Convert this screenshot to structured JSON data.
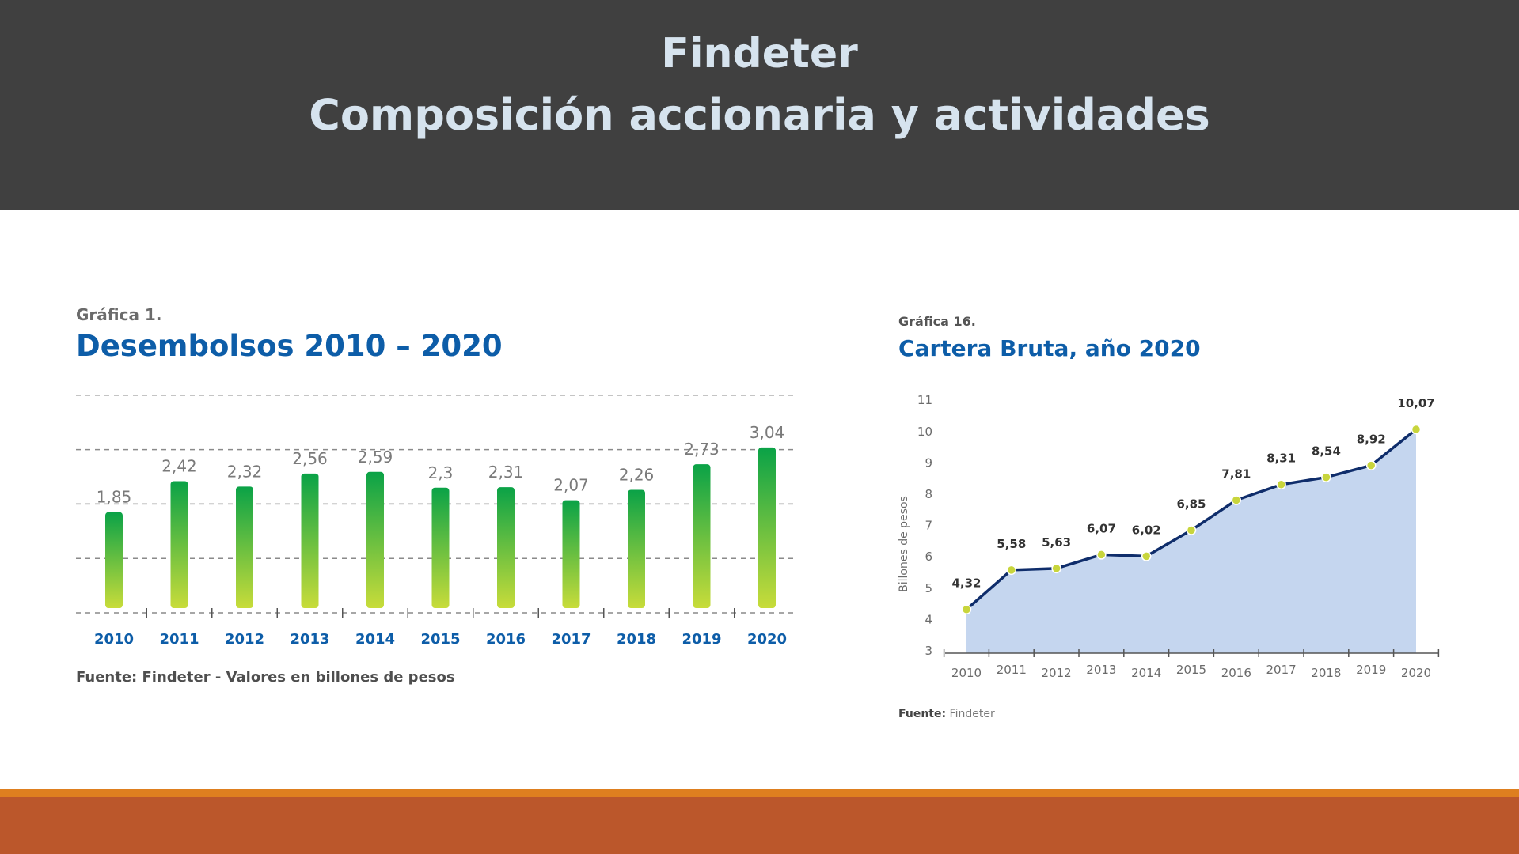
{
  "header": {
    "line1": "Findeter",
    "line2": "Composición accionaria y actividades"
  },
  "chart1": {
    "kicker": "Gráfica 1.",
    "title": "Desembolsos 2010 – 2020",
    "source": "Fuente: Findeter - Valores en billones de pesos"
  },
  "chart2": {
    "kicker": "Gráfica 16.",
    "title": "Cartera Bruta, año 2020",
    "source_bold": "Fuente:",
    "source_rest": " Findeter"
  },
  "colors": {
    "header_bg": "#404040",
    "header_text": "#d6e3ee",
    "title_blue": "#0d5da8",
    "bar_top": "#0aa247",
    "bar_bottom": "#c8dc3a",
    "line_navy": "#0f2d6b",
    "area_fill": "#c5d6ef",
    "marker": "#c8d53c",
    "footer_orange": "#de7f1f",
    "footer_brown": "#bb572b"
  },
  "chart_data": [
    {
      "type": "bar",
      "categories": [
        "2010",
        "2011",
        "2012",
        "2013",
        "2014",
        "2015",
        "2016",
        "2017",
        "2018",
        "2019",
        "2020"
      ],
      "values": [
        1.85,
        2.42,
        2.32,
        2.56,
        2.59,
        2.3,
        2.31,
        2.07,
        2.26,
        2.73,
        3.04
      ],
      "value_labels": [
        "1,85",
        "2,42",
        "2,32",
        "2,56",
        "2,59",
        "2,3",
        "2,31",
        "2,07",
        "2,26",
        "2,73",
        "3,04"
      ],
      "title": "Desembolsos 2010 – 2020",
      "xlabel": "",
      "ylabel": "",
      "ylim": [
        0,
        4
      ],
      "grid": true
    },
    {
      "type": "area",
      "categories": [
        "2010",
        "2011",
        "2012",
        "2013",
        "2014",
        "2015",
        "2016",
        "2017",
        "2018",
        "2019",
        "2020"
      ],
      "values": [
        4.32,
        5.58,
        5.63,
        6.07,
        6.02,
        6.85,
        7.81,
        8.31,
        8.54,
        8.92,
        10.07
      ],
      "value_labels": [
        "4,32",
        "5,58",
        "5,63",
        "6,07",
        "6,02",
        "6,85",
        "7,81",
        "8,31",
        "8,54",
        "8,92",
        "10,07"
      ],
      "title": "Cartera Bruta, año 2020",
      "xlabel": "",
      "ylabel": "Billones de pesos",
      "yticks": [
        "3",
        "4",
        "5",
        "6",
        "7",
        "8",
        "9",
        "10",
        "11"
      ],
      "ylim": [
        3,
        11
      ],
      "grid": false
    }
  ]
}
